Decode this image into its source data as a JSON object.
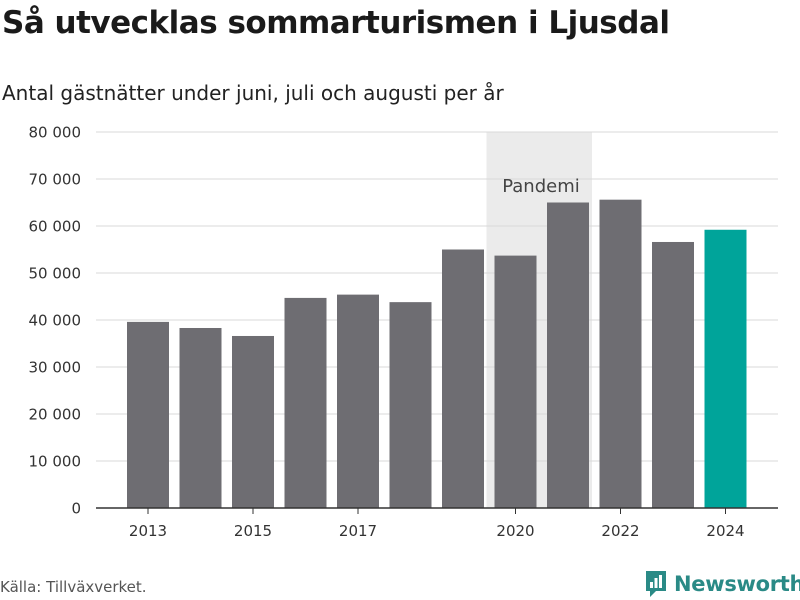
{
  "title": "Så utvecklas sommarturismen i Ljusdal",
  "subtitle": "Antal gästnätter under juni, juli och augusti per år",
  "source": "Källa: Tillväxverket.",
  "brand": {
    "name": "Newsworthy",
    "icon": "newsworthy-logo-icon",
    "color": "#2a8a86"
  },
  "colors": {
    "bar": "#6e6d72",
    "highlight": "#00a49a",
    "shade": "#ebebeb",
    "grid": "#d8d8d8"
  },
  "chart_data": {
    "type": "bar",
    "categories": [
      "2013",
      "2014",
      "2015",
      "2016",
      "2017",
      "2018",
      "2019",
      "2020",
      "2021",
      "2022",
      "2023",
      "2024"
    ],
    "values": [
      39600,
      38300,
      36600,
      44700,
      45400,
      43800,
      55000,
      53700,
      65000,
      65600,
      56600,
      59200
    ],
    "highlight_category": "2024",
    "x_tick_labels": [
      "2013",
      "2015",
      "2017",
      "2020",
      "2022",
      "2024"
    ],
    "ylim": [
      0,
      80000
    ],
    "y_ticks": [
      0,
      10000,
      20000,
      30000,
      40000,
      50000,
      60000,
      70000,
      80000
    ],
    "y_tick_labels": [
      "0",
      "10 000",
      "20 000",
      "30 000",
      "40 000",
      "50 000",
      "60 000",
      "70 000",
      "80 000"
    ],
    "grid": true,
    "annotation": {
      "label": "Pandemi",
      "from": "2020",
      "to": "2021"
    }
  }
}
